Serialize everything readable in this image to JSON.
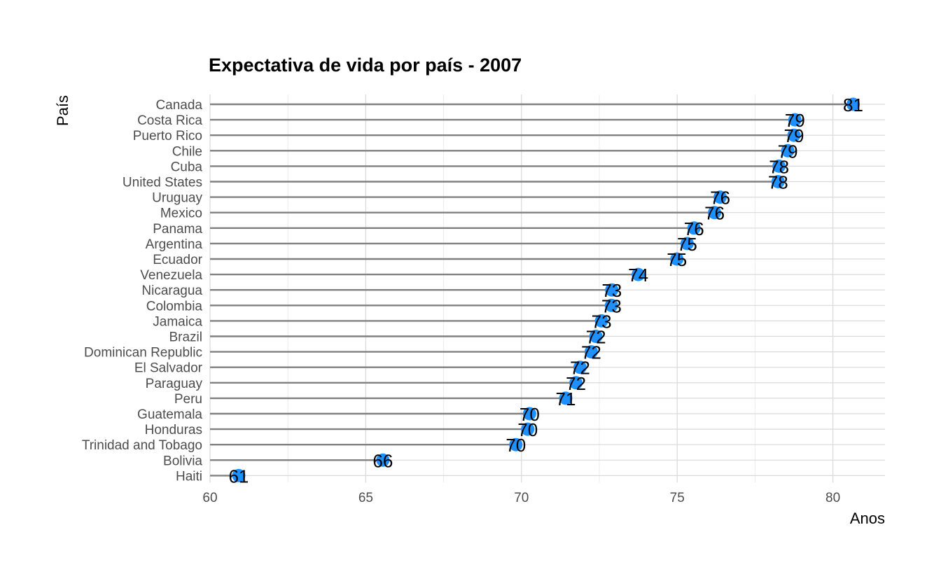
{
  "chart_data": {
    "type": "lollipop",
    "title": "Expectativa de vida por país - 2007",
    "xlabel": "Anos",
    "ylabel": "País",
    "xlim": [
      60,
      81.7
    ],
    "x_ticks": [
      60,
      65,
      70,
      75,
      80
    ],
    "grid": true,
    "point_color": "#1E90FF",
    "segment_color": "#808080",
    "categories": [
      "Canada",
      "Costa Rica",
      "Puerto Rico",
      "Chile",
      "Cuba",
      "United States",
      "Uruguay",
      "Mexico",
      "Panama",
      "Argentina",
      "Ecuador",
      "Venezuela",
      "Nicaragua",
      "Colombia",
      "Jamaica",
      "Brazil",
      "Dominican Republic",
      "El Salvador",
      "Paraguay",
      "Peru",
      "Guatemala",
      "Honduras",
      "Trinidad and Tobago",
      "Bolivia",
      "Haiti"
    ],
    "values": [
      80.65,
      78.78,
      78.75,
      78.55,
      78.27,
      78.24,
      76.38,
      76.2,
      75.54,
      75.32,
      74.99,
      73.75,
      72.9,
      72.89,
      72.57,
      72.39,
      72.24,
      71.88,
      71.75,
      71.42,
      70.26,
      70.2,
      69.82,
      65.55,
      60.92
    ],
    "labels": [
      "81",
      "79",
      "79",
      "79",
      "78",
      "78",
      "76",
      "76",
      "76",
      "75",
      "75",
      "74",
      "73",
      "73",
      "73",
      "72",
      "72",
      "72",
      "72",
      "71",
      "70",
      "70",
      "70",
      "66",
      "61"
    ]
  }
}
